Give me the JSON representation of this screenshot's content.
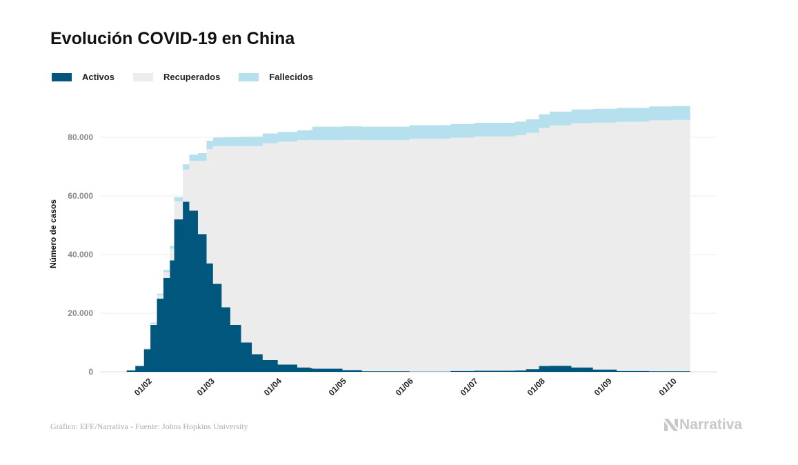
{
  "chart_data": {
    "type": "area",
    "stacked": true,
    "title": "Evolución COVID-19 en China",
    "xlabel": "",
    "ylabel": "Número de casos",
    "ylim": [
      0,
      95000
    ],
    "yticks": [
      0,
      20000,
      40000,
      60000,
      80000
    ],
    "ytick_labels": [
      "0",
      "20.000",
      "40.000",
      "60.000",
      "80.000"
    ],
    "xticks": [
      "2020-02-01",
      "2020-03-01",
      "2020-04-01",
      "2020-05-01",
      "2020-06-01",
      "2020-07-01",
      "2020-08-01",
      "2020-09-01",
      "2020-10-01"
    ],
    "xtick_labels": [
      "01/02",
      "01/03",
      "01/04",
      "01/05",
      "01/06",
      "01/07",
      "01/08",
      "01/09",
      "01/10"
    ],
    "grid": true,
    "legend_placement": "top-left",
    "colors": {
      "Activos": "#00567d",
      "Recuperados": "#ececec",
      "Fallecidos": "#b7e0ee"
    },
    "x": [
      "2020-01-22",
      "2020-01-26",
      "2020-01-30",
      "2020-02-02",
      "2020-02-05",
      "2020-02-08",
      "2020-02-11",
      "2020-02-13",
      "2020-02-17",
      "2020-02-20",
      "2020-02-24",
      "2020-02-28",
      "2020-03-02",
      "2020-03-06",
      "2020-03-10",
      "2020-03-15",
      "2020-03-20",
      "2020-03-25",
      "2020-04-01",
      "2020-04-10",
      "2020-04-16",
      "2020-04-17",
      "2020-05-01",
      "2020-05-10",
      "2020-06-01",
      "2020-06-20",
      "2020-07-01",
      "2020-07-20",
      "2020-07-25",
      "2020-07-31",
      "2020-08-05",
      "2020-08-15",
      "2020-08-25",
      "2020-09-05",
      "2020-09-20",
      "2020-10-01",
      "2020-10-09"
    ],
    "series": [
      {
        "name": "Activos",
        "values": [
          500,
          2000,
          7700,
          16000,
          25000,
          32000,
          38000,
          52000,
          58000,
          55000,
          47000,
          37000,
          30000,
          22000,
          16000,
          10000,
          6000,
          4000,
          2500,
          1500,
          1300,
          1100,
          600,
          200,
          100,
          300,
          400,
          500,
          900,
          2000,
          2100,
          1500,
          800,
          300,
          200,
          200,
          200
        ]
      },
      {
        "name": "Recuperados",
        "values": [
          30,
          50,
          120,
          470,
          1100,
          2000,
          4000,
          6200,
          11000,
          17000,
          25000,
          39000,
          47000,
          55000,
          61000,
          67000,
          71000,
          74000,
          76000,
          77500,
          77900,
          77900,
          78500,
          78800,
          79400,
          79600,
          79900,
          80200,
          80600,
          81200,
          82000,
          83300,
          84200,
          85000,
          85600,
          85700,
          85800
        ]
      },
      {
        "name": "Fallecidos",
        "values": [
          17,
          56,
          170,
          360,
          560,
          800,
          1000,
          1370,
          1770,
          2100,
          2600,
          2800,
          2900,
          3000,
          3100,
          3200,
          3250,
          3280,
          3310,
          3340,
          3340,
          4630,
          4630,
          4630,
          4634,
          4634,
          4640,
          4640,
          4640,
          4650,
          4660,
          4690,
          4700,
          4720,
          4730,
          4740,
          4740
        ]
      }
    ]
  },
  "footer": {
    "source": "Gráfico: EFE/Narrativa - Fuente: Johns Hopkins University",
    "logo": "Narrativa"
  }
}
